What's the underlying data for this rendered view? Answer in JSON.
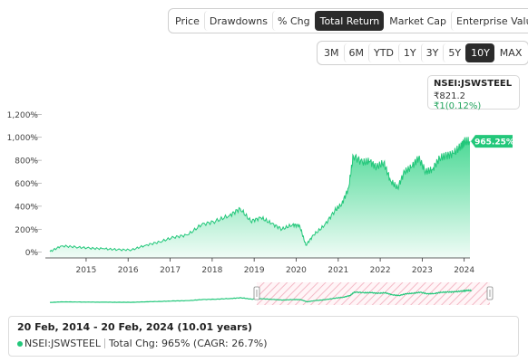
{
  "toolbar": {
    "metrics": [
      "Price",
      "Drawdowns",
      "% Chg",
      "Total Return",
      "Market Cap",
      "Enterprise Value"
    ],
    "active_metric": "Total Return",
    "ranges": [
      "3M",
      "6M",
      "YTD",
      "1Y",
      "3Y",
      "5Y",
      "10Y",
      "MAX"
    ],
    "active_range": "10Y"
  },
  "ticker": {
    "symbol": "NSEI:JSWSTEEL",
    "price": "₹821.2",
    "change": "₹1(0.12%)"
  },
  "colors": {
    "accent": "#22c77a",
    "area_top": "#3fd68e",
    "active_bg": "#2b2b2b"
  },
  "chart_data": {
    "type": "area",
    "title": "",
    "xlabel": "",
    "ylabel": "",
    "y_ticks": [
      "1,200%",
      "1,000%",
      "800%",
      "600%",
      "400%",
      "200%",
      "0%"
    ],
    "ylim": [
      -50,
      1250
    ],
    "x_ticks": [
      "2015",
      "2016",
      "2017",
      "2018",
      "2019",
      "2020",
      "2021",
      "2022",
      "2023",
      "2024"
    ],
    "xlim": [
      "2014-02-20",
      "2024-02-20"
    ],
    "end_label": "965.25%",
    "series": [
      {
        "x": [
          "2014-02-20",
          "2014-06",
          "2014-10",
          "2015-02",
          "2015-06",
          "2015-10",
          "2016-02",
          "2016-06",
          "2016-10",
          "2017-02",
          "2017-06",
          "2017-10",
          "2018-02",
          "2018-06",
          "2018-09",
          "2018-12",
          "2019-03",
          "2019-06",
          "2019-09",
          "2019-12",
          "2020-02",
          "2020-03-25",
          "2020-06",
          "2020-09",
          "2020-12",
          "2021-02",
          "2021-04",
          "2021-05-12",
          "2021-08",
          "2021-10",
          "2021-12",
          "2022-02",
          "2022-04",
          "2022-06",
          "2022-08",
          "2022-10",
          "2022-12",
          "2023-02",
          "2023-04",
          "2023-06",
          "2023-08",
          "2023-10",
          "2023-12",
          "2024-01",
          "2024-02-20"
        ],
        "values": [
          5,
          55,
          45,
          35,
          30,
          22,
          20,
          60,
          90,
          130,
          150,
          240,
          270,
          320,
          380,
          270,
          300,
          250,
          200,
          240,
          230,
          60,
          150,
          230,
          360,
          420,
          560,
          840,
          780,
          790,
          740,
          780,
          620,
          560,
          700,
          740,
          820,
          700,
          720,
          820,
          840,
          860,
          920,
          960,
          965.25
        ]
      }
    ]
  },
  "info": {
    "range_text": "20 Feb, 2014 - 20 Feb, 2024 (10.01 years)",
    "symbol": "NSEI:JSWSTEEL",
    "total_chg": "Total Chg: 965% (CAGR: 26.7%)"
  }
}
